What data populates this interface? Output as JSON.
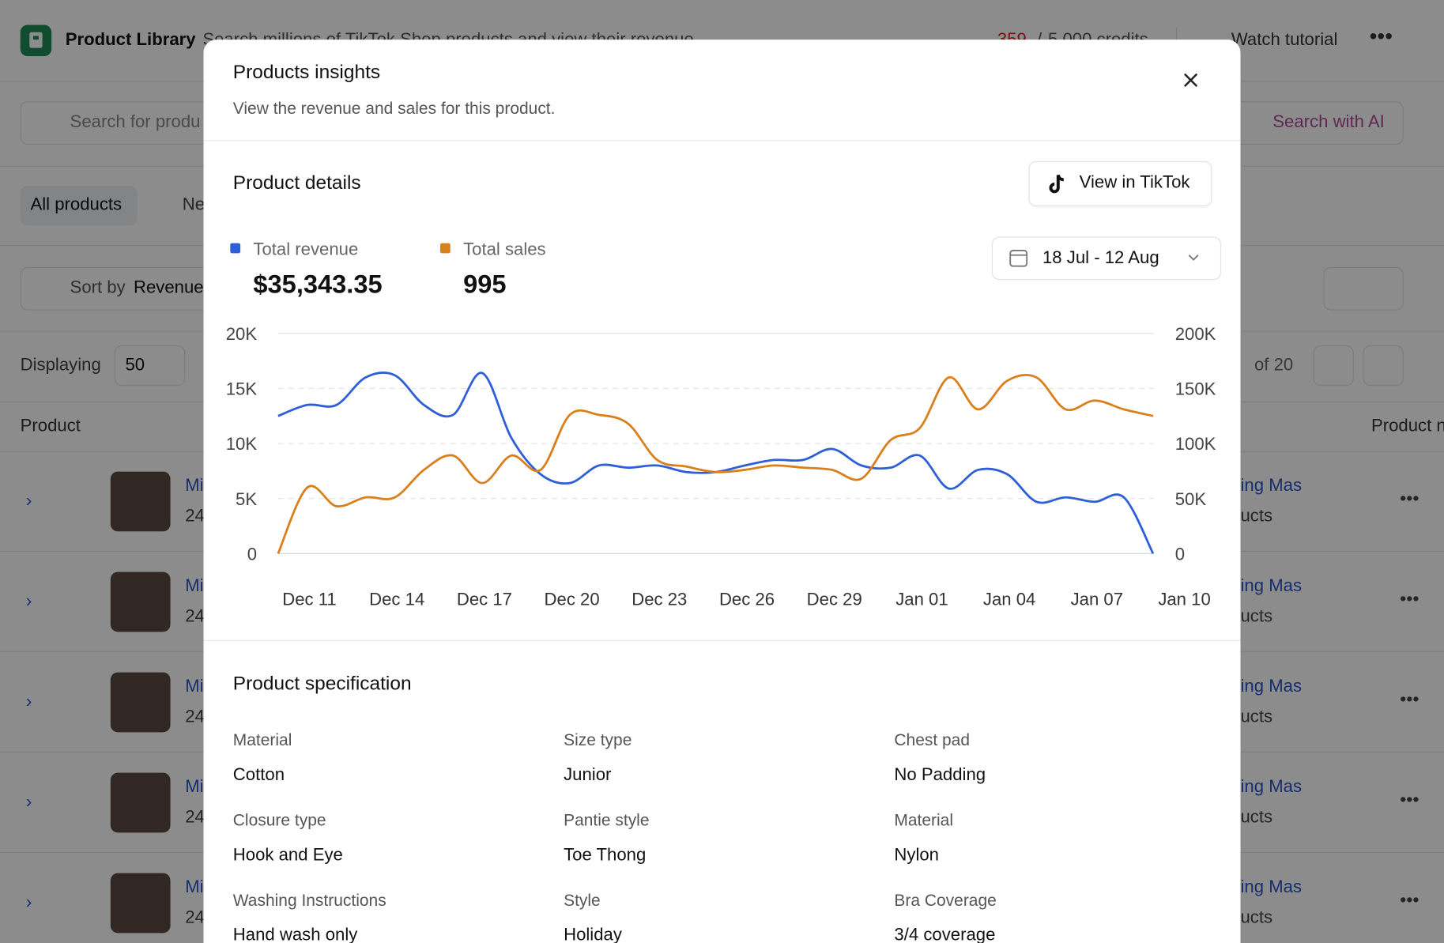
{
  "app": {
    "title": "Product Library",
    "subtitle": "Search millions of TikTok Shop products and view their revenue",
    "credits_used": "359",
    "credits_separator": "/",
    "credits_total": "5,000 credits",
    "tutorial": "Watch tutorial",
    "search_placeholder": "Search for produ",
    "search_ai": "Search with AI",
    "tabs": [
      "All products",
      "Ne"
    ],
    "sort_label": "Sort by",
    "sort_value": "Revenue",
    "displaying": "Displaying",
    "page_size": "50",
    "of_pages": "of 20",
    "col_product": "Product",
    "col_product_right": "Product n",
    "rows": [
      {
        "name": "Mi",
        "sub": "24",
        "shop": "ing Mas",
        "shop_sub": "ucts"
      },
      {
        "name": "Mi",
        "sub": "24",
        "shop": "ing Mas",
        "shop_sub": "ucts"
      },
      {
        "name": "Mi",
        "sub": "24",
        "shop": "ing Mas",
        "shop_sub": "ucts"
      },
      {
        "name": "Mi",
        "sub": "24",
        "shop": "ing Mas",
        "shop_sub": "ucts"
      },
      {
        "name": "Mi",
        "sub": "24",
        "shop": "ing Mas",
        "shop_sub": "ucts"
      }
    ]
  },
  "modal": {
    "title": "Products insights",
    "description": "View the revenue and sales for this product.",
    "details_heading": "Product details",
    "view_button": "View in TikTok",
    "date_range": "18 Jul - 12 Aug",
    "spec_heading": "Product specification",
    "specs": [
      {
        "label": "Material",
        "value": "Cotton"
      },
      {
        "label": "Size type",
        "value": "Junior"
      },
      {
        "label": "Chest pad",
        "value": "No Padding"
      },
      {
        "label": "Closure type",
        "value": "Hook and Eye"
      },
      {
        "label": "Pantie style",
        "value": "Toe Thong"
      },
      {
        "label": "Material",
        "value": "Nylon"
      },
      {
        "label": "Washing Instructions",
        "value": "Hand wash only"
      },
      {
        "label": "Style",
        "value": "Holiday"
      },
      {
        "label": "Bra Coverage",
        "value": "3/4 coverage"
      }
    ],
    "chart_data": {
      "type": "line",
      "categories": [
        null,
        "Dec 11",
        null,
        null,
        "Dec 14",
        null,
        null,
        "Dec 17",
        null,
        null,
        "Dec 20",
        null,
        null,
        "Dec 23",
        null,
        null,
        "Dec 26",
        null,
        null,
        "Dec 29",
        null,
        null,
        "Jan 01",
        null,
        null,
        "Jan 04",
        null,
        null,
        "Jan 07",
        null,
        null,
        "Jan 10"
      ],
      "series": [
        {
          "name": "Total revenue",
          "total": "$35,343.35",
          "color": "#2f5fd8",
          "values": [
            12500,
            13500,
            13500,
            16000,
            16200,
            13500,
            12600,
            16400,
            10500,
            7200,
            6400,
            8000,
            7800,
            8000,
            7400,
            7400,
            8000,
            8500,
            8500,
            9500,
            8000,
            7800,
            8900,
            5900,
            7600,
            7200,
            4700,
            5100,
            4700,
            5100,
            0,
            null
          ]
        },
        {
          "name": "Total sales",
          "total": "995",
          "color": "#d9801c",
          "axis": "y2",
          "values": [
            0,
            60000,
            43000,
            51000,
            51000,
            76000,
            89000,
            64000,
            89000,
            76000,
            126000,
            126000,
            118000,
            85000,
            79000,
            74000,
            76000,
            80000,
            78000,
            76000,
            68000,
            103000,
            114000,
            160000,
            131000,
            157000,
            160000,
            131000,
            139000,
            131000,
            125000,
            null
          ]
        }
      ],
      "ylim": [
        0,
        20000
      ],
      "yticks": [
        0,
        {
          "value": 5000,
          "label": "5K"
        },
        {
          "value": 10000,
          "label": "10K"
        },
        {
          "value": 15000,
          "label": "15K"
        },
        {
          "value": 20000,
          "label": "20K"
        }
      ],
      "y2lim": [
        0,
        200000
      ],
      "y2ticks": [
        0,
        {
          "value": 50000,
          "label": "50K"
        },
        {
          "value": 100000,
          "label": "100K"
        },
        {
          "value": 150000,
          "label": "150K"
        },
        {
          "value": 200000,
          "label": "200K"
        }
      ],
      "grid": true
    }
  }
}
